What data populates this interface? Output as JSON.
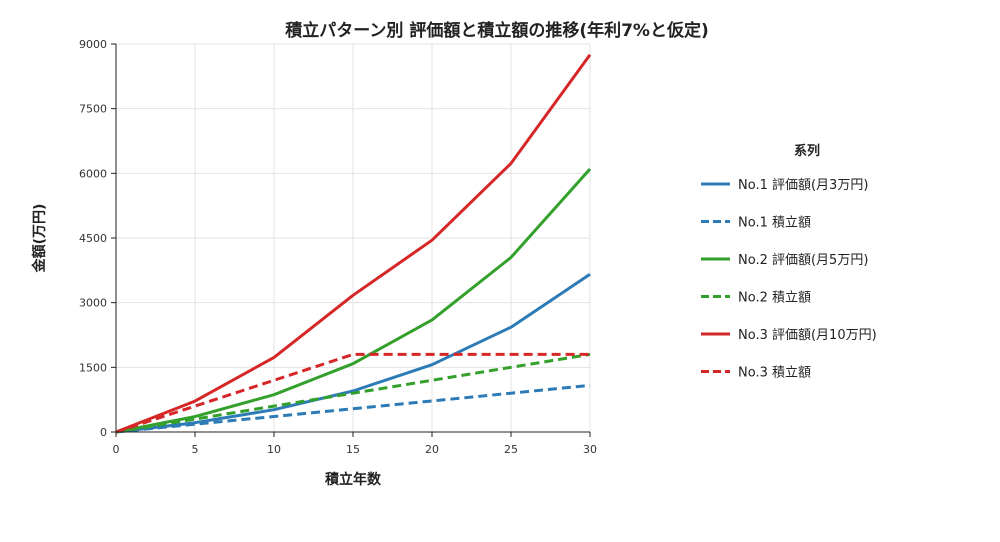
{
  "chart_data": {
    "type": "line",
    "title": "積立パターン別 評価額と積立額の推移(年利7%と仮定)",
    "xlabel": "積立年数",
    "ylabel": "金額(万円)",
    "x": [
      0,
      5,
      10,
      15,
      20,
      25,
      30
    ],
    "xlim": [
      0,
      30
    ],
    "ylim": [
      0,
      9000
    ],
    "xticks": [
      "0",
      "5",
      "10",
      "15",
      "20",
      "25",
      "30"
    ],
    "yticks": [
      "0",
      "1500",
      "3000",
      "4500",
      "6000",
      "7500",
      "9000"
    ],
    "grid": true,
    "legend_title": "系列",
    "legend_position": "right",
    "series": [
      {
        "name": "No.1 評価額(月3万円)",
        "color": "#2c7bb6",
        "dash": "solid",
        "values": [
          0,
          215,
          518,
          950,
          1560,
          2430,
          3660
        ]
      },
      {
        "name": "No.1 積立額",
        "color": "#2c7bb6",
        "dash": "dashed",
        "values": [
          0,
          180,
          360,
          540,
          720,
          900,
          1080
        ]
      },
      {
        "name": "No.2 評価額(月5万円)",
        "color": "#33a02c",
        "dash": "solid",
        "values": [
          0,
          358,
          865,
          1585,
          2600,
          4050,
          6100
        ]
      },
      {
        "name": "No.2 積立額",
        "color": "#33a02c",
        "dash": "dashed",
        "values": [
          0,
          300,
          600,
          900,
          1200,
          1500,
          1800
        ]
      },
      {
        "name": "No.3 評価額(月10万円)",
        "color": "#d62728",
        "dash": "solid",
        "values": [
          0,
          716,
          1730,
          3170,
          4450,
          6230,
          8750
        ]
      },
      {
        "name": "No.3 積立額",
        "color": "#d62728",
        "dash": "dashed",
        "values": [
          0,
          600,
          1200,
          1800,
          1800,
          1800,
          1800
        ]
      }
    ]
  }
}
